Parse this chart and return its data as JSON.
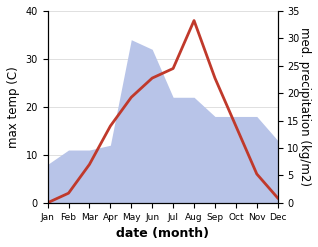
{
  "months": [
    "Jan",
    "Feb",
    "Mar",
    "Apr",
    "May",
    "Jun",
    "Jul",
    "Aug",
    "Sep",
    "Oct",
    "Nov",
    "Dec"
  ],
  "temp": [
    0,
    2,
    8,
    16,
    22,
    26,
    28,
    38,
    26,
    16,
    6,
    1
  ],
  "precip_left_scale": [
    8,
    11,
    11,
    12,
    34,
    32,
    22,
    22,
    18,
    18,
    18,
    13
  ],
  "temp_color": "#c0392b",
  "precip_fill": "#b8c4e8",
  "temp_ylim": [
    0,
    40
  ],
  "precip_ylim": [
    0,
    35
  ],
  "temp_yticks": [
    0,
    10,
    20,
    30,
    40
  ],
  "precip_yticks": [
    0,
    5,
    10,
    15,
    20,
    25,
    30,
    35
  ],
  "ylabel_left": "max temp (C)",
  "ylabel_right": "med. precipitation (kg/m2)",
  "xlabel": "date (month)",
  "xlabel_fontsize": 9,
  "ylabel_fontsize": 8.5,
  "tick_fontsize": 7,
  "month_fontsize": 6.5
}
